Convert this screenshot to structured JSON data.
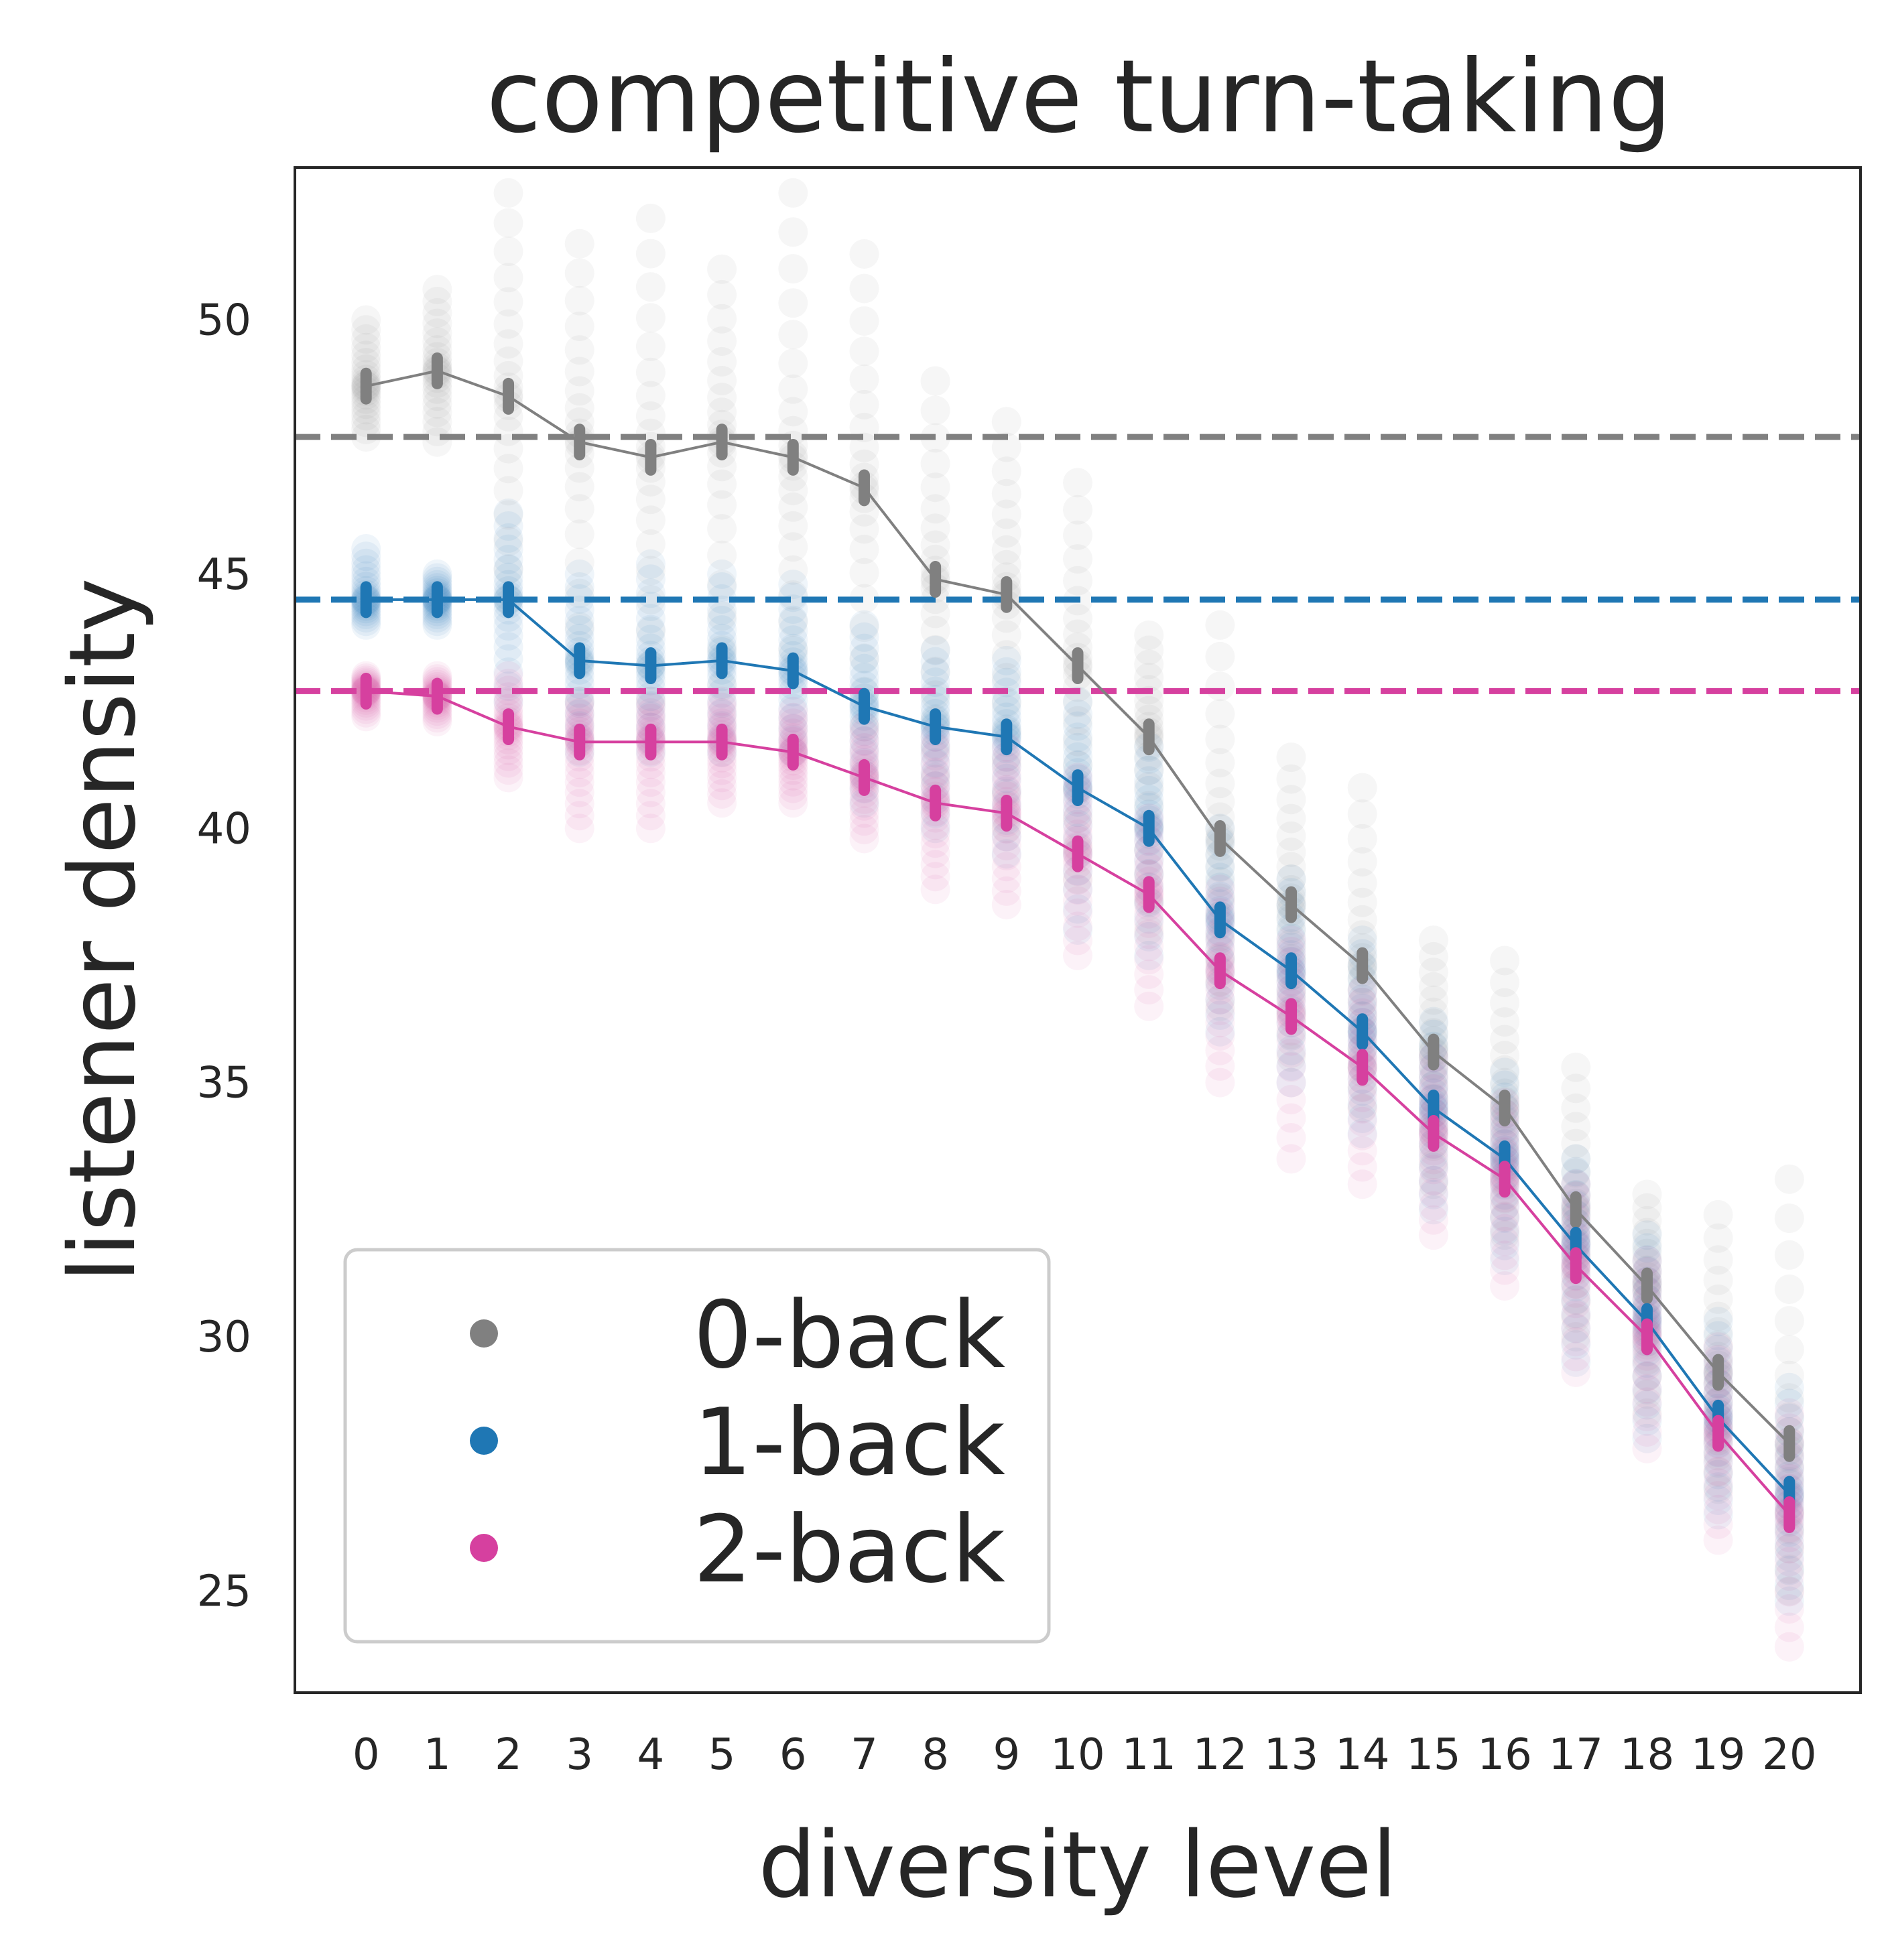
{
  "chart_data": {
    "type": "scatter",
    "title": "competitive turn-taking",
    "xlabel": "diversity level",
    "ylabel": "listener density",
    "x": [
      0,
      1,
      2,
      3,
      4,
      5,
      6,
      7,
      8,
      9,
      10,
      11,
      12,
      13,
      14,
      15,
      16,
      17,
      18,
      19,
      20
    ],
    "xtick_labels": [
      "0",
      "1",
      "2",
      "3",
      "4",
      "5",
      "6",
      "7",
      "8",
      "9",
      "10",
      "11",
      "12",
      "13",
      "14",
      "15",
      "16",
      "17",
      "18",
      "19",
      "20"
    ],
    "yticks": [
      25,
      30,
      35,
      40,
      45,
      50
    ],
    "ylim": [
      23,
      53
    ],
    "xlim": [
      -1,
      21
    ],
    "grid": false,
    "legend_position": "lower-left",
    "series": [
      {
        "name": "0-back",
        "color": "#808080",
        "baseline": 47.7,
        "mean": [
          48.7,
          49.0,
          48.5,
          47.6,
          47.3,
          47.6,
          47.3,
          46.7,
          44.9,
          44.6,
          43.2,
          41.8,
          39.8,
          38.5,
          37.3,
          35.6,
          34.5,
          32.5,
          31.0,
          29.3,
          27.9
        ],
        "spread_low": [
          47.7,
          47.6,
          44.5,
          42.5,
          42.5,
          42.8,
          43.5,
          42.0,
          41.0,
          40.0,
          39.0,
          38.0,
          36.5,
          35.5,
          34.5,
          33.0,
          32.0,
          30.0,
          28.5,
          27.0,
          25.0
        ],
        "spread_high": [
          50.0,
          50.6,
          52.5,
          51.5,
          52.0,
          51.0,
          52.5,
          51.3,
          48.8,
          48.0,
          46.8,
          43.8,
          44.0,
          41.4,
          40.8,
          37.8,
          37.4,
          35.3,
          32.8,
          32.4,
          33.1
        ]
      },
      {
        "name": "1-back",
        "color": "#1f77b4",
        "baseline": 44.5,
        "mean": [
          44.5,
          44.5,
          44.5,
          43.3,
          43.2,
          43.3,
          43.1,
          42.4,
          42.0,
          41.8,
          40.8,
          40.0,
          38.2,
          37.2,
          36.0,
          34.5,
          33.5,
          31.8,
          30.3,
          28.4,
          26.9
        ],
        "spread_low": [
          44.0,
          44.0,
          42.5,
          41.5,
          41.5,
          41.5,
          41.5,
          40.5,
          40.0,
          39.5,
          38.0,
          37.5,
          36.0,
          35.0,
          34.0,
          32.5,
          31.5,
          29.5,
          28.0,
          26.5,
          24.8
        ],
        "spread_high": [
          45.5,
          45.0,
          46.2,
          45.0,
          45.2,
          45.0,
          44.8,
          44.0,
          43.5,
          43.3,
          42.5,
          41.6,
          40.0,
          39.0,
          37.8,
          36.2,
          35.2,
          33.5,
          32.0,
          30.3,
          29.0
        ]
      },
      {
        "name": "2-back",
        "color": "#d6409f",
        "baseline": 42.7,
        "mean": [
          42.7,
          42.6,
          42.0,
          41.7,
          41.7,
          41.7,
          41.5,
          41.0,
          40.5,
          40.3,
          39.5,
          38.7,
          37.2,
          36.3,
          35.3,
          34.0,
          33.1,
          31.4,
          30.0,
          28.1,
          26.5
        ],
        "spread_low": [
          42.2,
          42.1,
          41.0,
          40.0,
          40.0,
          40.5,
          40.5,
          39.8,
          38.8,
          38.5,
          37.5,
          36.5,
          35.0,
          33.5,
          33.0,
          32.0,
          31.0,
          29.3,
          27.8,
          26.0,
          23.9
        ],
        "spread_high": [
          43.0,
          43.0,
          43.0,
          42.5,
          42.5,
          42.5,
          42.3,
          42.0,
          41.8,
          41.6,
          41.0,
          40.2,
          38.8,
          37.8,
          36.8,
          35.5,
          34.6,
          33.0,
          31.5,
          29.8,
          28.5
        ]
      }
    ]
  }
}
